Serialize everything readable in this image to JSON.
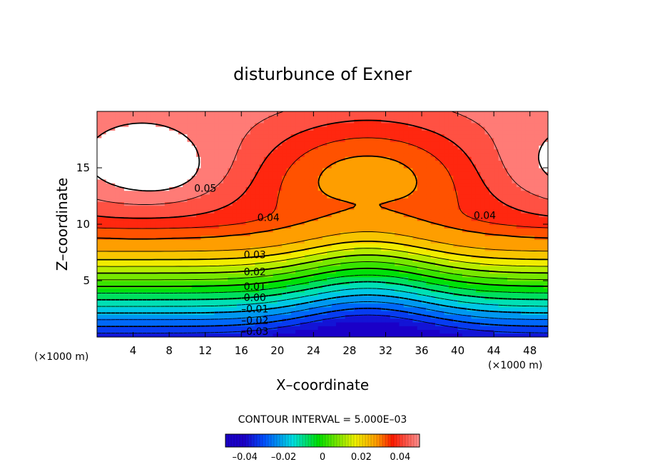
{
  "chart_data": {
    "type": "contour",
    "title": "disturbunce of Exner",
    "xlabel": "X–coordinate",
    "ylabel": "Z–coordinate",
    "x_unit": "(×1000 m)",
    "x_unit_right": "(×1000 m)",
    "xlim": [
      0,
      50
    ],
    "ylim": [
      0,
      20
    ],
    "x_ticks": [
      4,
      8,
      12,
      16,
      20,
      24,
      28,
      32,
      36,
      40,
      44,
      48
    ],
    "y_ticks": [
      5,
      10,
      15
    ],
    "contour_interval_text": "CONTOUR INTERVAL = 5.000E–03",
    "contour_interval": 0.005,
    "levels": [
      -0.035,
      -0.03,
      -0.025,
      -0.02,
      -0.015,
      -0.01,
      -0.005,
      0.0,
      0.005,
      0.01,
      0.015,
      0.02,
      0.025,
      0.03,
      0.035,
      0.04,
      0.045,
      0.05
    ],
    "contour_labels": [
      {
        "text": "0.05",
        "x": 12.0,
        "z": 13.2
      },
      {
        "text": "0.04",
        "x": 19.0,
        "z": 10.6
      },
      {
        "text": "0.04",
        "x": 43.0,
        "z": 10.8
      },
      {
        "text": "0.03",
        "x": 17.5,
        "z": 7.3
      },
      {
        "text": "0.02",
        "x": 17.5,
        "z": 5.8
      },
      {
        "text": "0.01",
        "x": 17.5,
        "z": 4.5
      },
      {
        "text": "0.00",
        "x": 17.5,
        "z": 3.5
      },
      {
        "text": "–0.01",
        "x": 17.5,
        "z": 2.5
      },
      {
        "text": "–0.02",
        "x": 17.5,
        "z": 1.5
      },
      {
        "text": "–0.03",
        "x": 17.5,
        "z": 0.5
      }
    ],
    "colorbar": {
      "range": [
        -0.05,
        0.05
      ],
      "ticks": [
        {
          "label": "–0.04",
          "value": -0.04
        },
        {
          "label": "–0.02",
          "value": -0.02
        },
        {
          "label": "0",
          "value": 0.0
        },
        {
          "label": "0.02",
          "value": 0.02
        },
        {
          "label": "0.04",
          "value": 0.04
        }
      ]
    },
    "palette": {
      "dark_blue": "#1a00c8",
      "blue": "#0050ff",
      "cyan": "#00e0e0",
      "green": "#00e000",
      "yellow": "#f0f000",
      "orange": "#ff9a00",
      "red": "#ff1a00",
      "pink": "#ff9090",
      "max": "#ffffff"
    }
  }
}
